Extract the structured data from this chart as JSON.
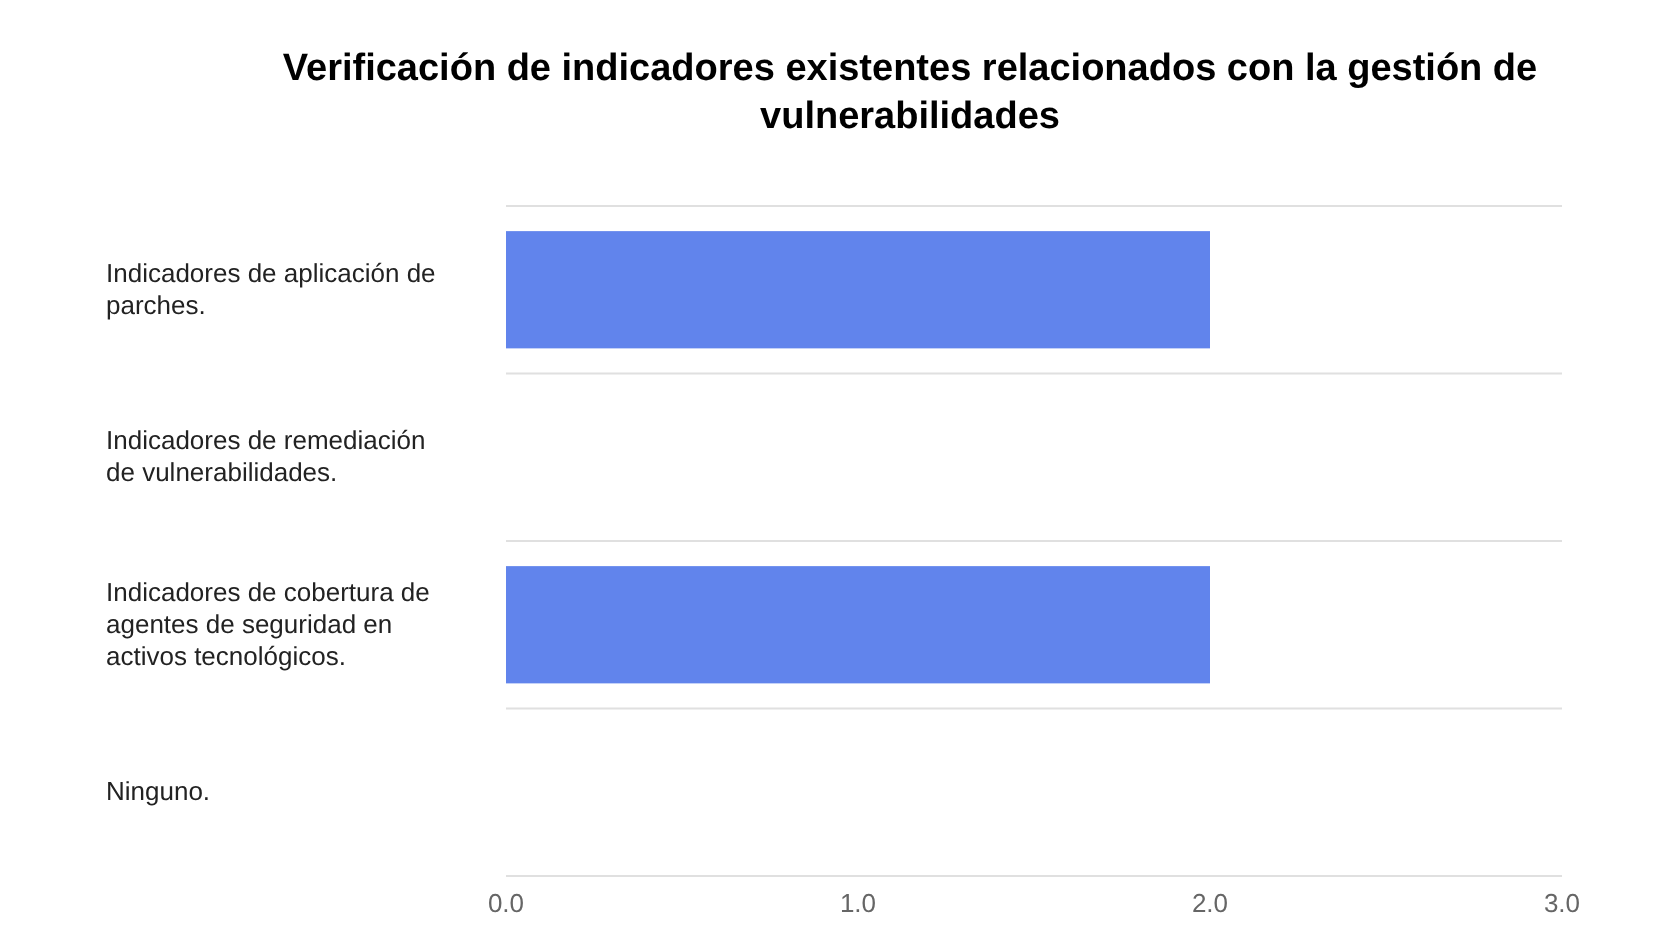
{
  "chart_data": {
    "type": "bar",
    "orientation": "horizontal",
    "title": "Verificación de indicadores existentes relacionados  con la gestión de vulnerabilidades",
    "categories": [
      "Indicadores de aplicación de parches.",
      "Indicadores de remediación de vulnerabilidades.",
      "Indicadores de cobertura de agentes de seguridad en activos tecnológicos.",
      "Ninguno."
    ],
    "values": [
      2,
      0,
      2,
      0
    ],
    "color": "#6184ec",
    "xlim": [
      0,
      3
    ],
    "xticks": [
      {
        "value": 0,
        "label": "0.0"
      },
      {
        "value": 1,
        "label": "1.0"
      },
      {
        "value": 2,
        "label": "2.0"
      },
      {
        "value": 3,
        "label": "3.0"
      }
    ],
    "grid": "y"
  }
}
